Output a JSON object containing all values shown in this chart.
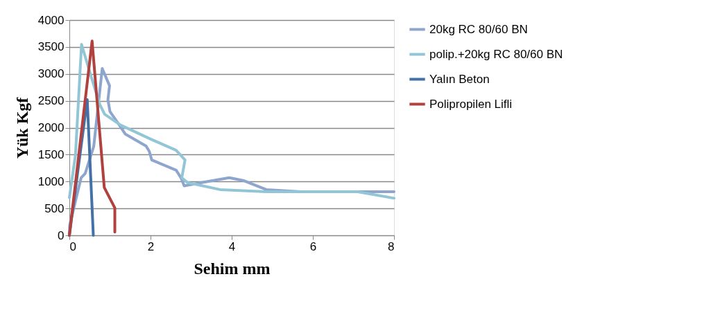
{
  "chart_data": {
    "type": "line",
    "xlabel": "Sehim  mm",
    "ylabel": "Yük  Kgf",
    "xlim": [
      0,
      8
    ],
    "xticks": [
      0,
      2,
      4,
      6,
      8
    ],
    "ylim": [
      0,
      4000
    ],
    "yticks": [
      0,
      500,
      1000,
      1500,
      2000,
      2500,
      3000,
      3500,
      4000
    ],
    "grid": "y",
    "legend": "right",
    "marker": "none",
    "line_style": "solid",
    "series": [
      {
        "name": "20kg RC 80/60 BN",
        "color": "#8ea5ce",
        "x": [
          0,
          0.01,
          0.29,
          0.39,
          0.6,
          0.81,
          0.99,
          0.95,
          1.0,
          1.23,
          1.38,
          1.89,
          1.97,
          2.03,
          2.63,
          2.75,
          2.83,
          3.26,
          3.94,
          4.28,
          4.85,
          5.7,
          8.0
        ],
        "values": [
          0,
          200,
          1070,
          1150,
          1650,
          3100,
          2780,
          2520,
          2300,
          2050,
          1880,
          1660,
          1560,
          1400,
          1210,
          1070,
          920,
          980,
          1070,
          1020,
          850,
          810,
          810
        ]
      },
      {
        "name": "polip.+20kg RC 80/60 BN",
        "color": "#92c5d6",
        "x": [
          0,
          0.15,
          0.3,
          0.52,
          0.75,
          0.87,
          1.26,
          2.0,
          2.63,
          2.85,
          2.77,
          2.91,
          3.71,
          4.85,
          7.1,
          8.0
        ],
        "values": [
          700,
          1490,
          3550,
          2990,
          2430,
          2250,
          2050,
          1790,
          1580,
          1400,
          1070,
          980,
          850,
          810,
          810,
          690
        ]
      },
      {
        "name": "Yalın Beton",
        "color": "#4472a8",
        "x": [
          0,
          0.44,
          0.59
        ],
        "values": [
          0,
          2520,
          0
        ]
      },
      {
        "name": "Polipropilen Lifli",
        "color": "#b0413e",
        "x": [
          0,
          0.56,
          0.86,
          1.12,
          1.12
        ],
        "values": [
          0,
          3610,
          890,
          510,
          60
        ]
      }
    ]
  }
}
